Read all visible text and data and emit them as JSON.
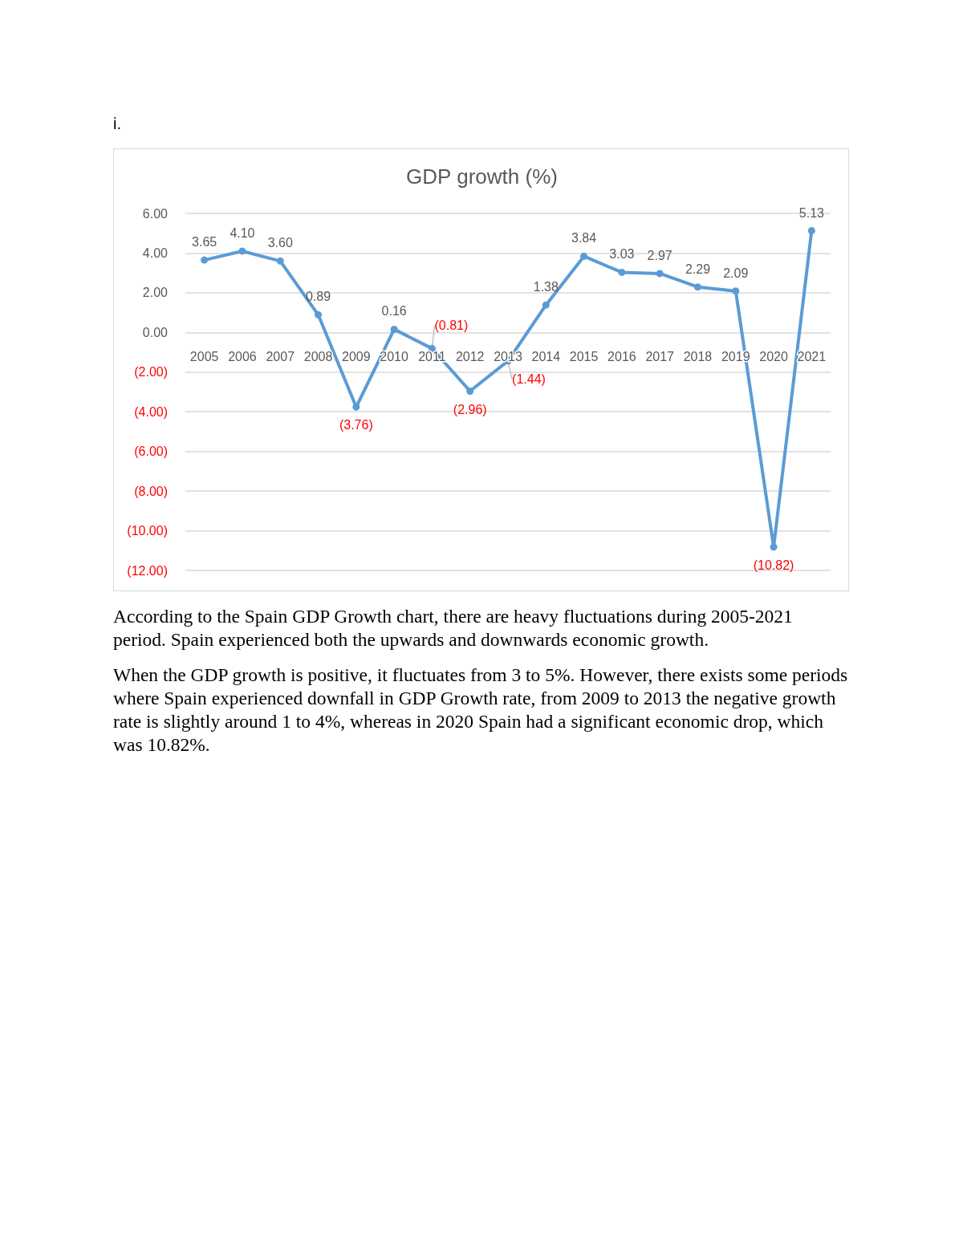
{
  "chart_data": {
    "type": "line",
    "title": "GDP growth (%)",
    "categories": [
      "2005",
      "2006",
      "2007",
      "2008",
      "2009",
      "2010",
      "2011",
      "2012",
      "2013",
      "2014",
      "2015",
      "2016",
      "2017",
      "2018",
      "2019",
      "2020",
      "2021"
    ],
    "series": [
      {
        "color": "#5b9bd5",
        "values": [
          3.65,
          4.1,
          3.6,
          0.89,
          -3.76,
          0.16,
          -0.81,
          -2.96,
          -1.44,
          1.38,
          3.84,
          3.03,
          2.97,
          2.29,
          2.09,
          -10.82,
          5.13
        ],
        "value_labels": [
          "3.65",
          "4.10",
          "3.60",
          "0.89",
          "(3.76)",
          "0.16",
          "(0.81)",
          "(2.96)",
          "(1.44)",
          "1.38",
          "3.84",
          "3.03",
          "2.97",
          "2.29",
          "2.09",
          "(10.82)",
          "5.13"
        ]
      }
    ],
    "ylim": [
      -12,
      6
    ],
    "yticks": [
      {
        "value": -12,
        "label": "(12.00)"
      },
      {
        "value": -10,
        "label": "(10.00)"
      },
      {
        "value": -8,
        "label": "(8.00)"
      },
      {
        "value": -6,
        "label": "(6.00)"
      },
      {
        "value": -4,
        "label": "(4.00)"
      },
      {
        "value": -2,
        "label": "(2.00)"
      },
      {
        "value": 0,
        "label": "0.00"
      },
      {
        "value": 2,
        "label": "2.00"
      },
      {
        "value": 4,
        "label": "4.00"
      },
      {
        "value": 6,
        "label": "6.00"
      }
    ],
    "grid": "y",
    "marker": "circle",
    "line_style": "solid",
    "annotations": [
      "i.",
      "According to the Spain GDP Growth chart, there are heavy fluctuations during 2005-2021 period. Spain experienced both the upwards and downwards economic growth.",
      "When the GDP growth is positive, it fluctuates from 3 to 5%. However, there exists some periods where Spain experienced downfall in GDP Growth rate, from 2009 to 2013 the negative growth rate is slightly around 1 to 4%, whereas in 2020 Spain had a significant economic drop, which was 10.82%."
    ]
  }
}
